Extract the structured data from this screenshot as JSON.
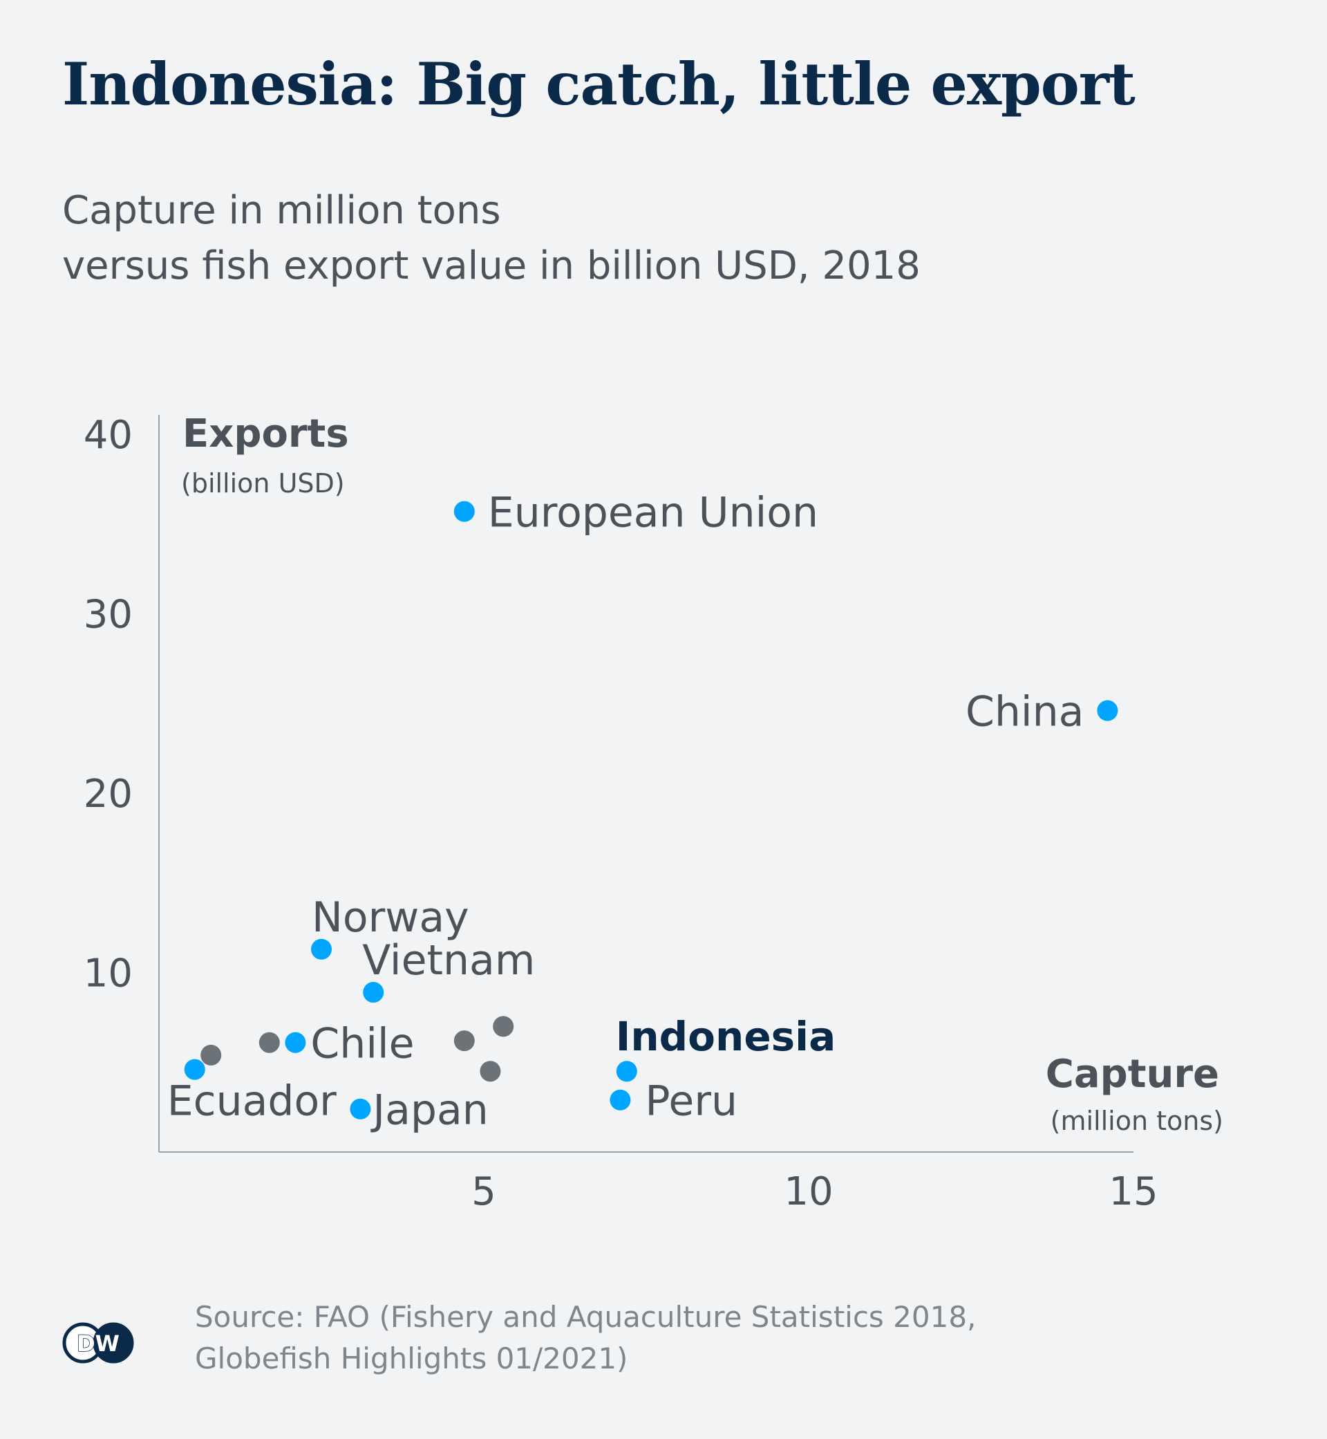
{
  "title": "Indonesia: Big catch, little export",
  "subtitle_line1": "Capture in million tons",
  "subtitle_line2": "versus fish export value in billion USD, 2018",
  "source_line1": "Source: FAO (Fishery and Aquaculture Statistics 2018,",
  "source_line2": "Globefish Highlights 01/2021)",
  "logo_text": "DW",
  "colors": {
    "background": "#f1f3f5",
    "title": "#0b2a4a",
    "text": "#4b5259",
    "labelled_point": "#00a5ff",
    "other_point": "#6b7379",
    "axis": "#9aa1a7",
    "highlight_label": "#0b2a4a"
  },
  "chart_data": {
    "type": "scatter",
    "ylabel": "Exports",
    "ylabel_unit": "(billion USD)",
    "xlabel": "Capture",
    "xlabel_unit": "(million tons)",
    "xlim": [
      0,
      15
    ],
    "ylim": [
      0,
      40
    ],
    "xticks": [
      5,
      10,
      15
    ],
    "yticks": [
      10,
      20,
      30,
      40
    ],
    "grid": false,
    "points": [
      {
        "label": "European Union",
        "x": 4.7,
        "y": 35.7,
        "highlight": false
      },
      {
        "label": "China",
        "x": 14.6,
        "y": 24.6,
        "highlight": false
      },
      {
        "label": "Norway",
        "x": 2.5,
        "y": 11.3,
        "highlight": false
      },
      {
        "label": "Vietnam",
        "x": 3.3,
        "y": 8.9,
        "highlight": false
      },
      {
        "label": "Chile",
        "x": 2.1,
        "y": 6.1,
        "highlight": false
      },
      {
        "label": "Ecuador",
        "x": 0.55,
        "y": 4.6,
        "highlight": false
      },
      {
        "label": "Japan",
        "x": 3.1,
        "y": 2.4,
        "highlight": false
      },
      {
        "label": "Indonesia",
        "x": 7.2,
        "y": 4.5,
        "highlight": true
      },
      {
        "label": "Peru",
        "x": 7.1,
        "y": 2.9,
        "highlight": false
      }
    ],
    "unlabelled_points": [
      {
        "x": 0.8,
        "y": 5.4
      },
      {
        "x": 1.7,
        "y": 6.1
      },
      {
        "x": 4.7,
        "y": 6.2
      },
      {
        "x": 5.3,
        "y": 7.0
      },
      {
        "x": 5.1,
        "y": 4.5
      }
    ]
  }
}
